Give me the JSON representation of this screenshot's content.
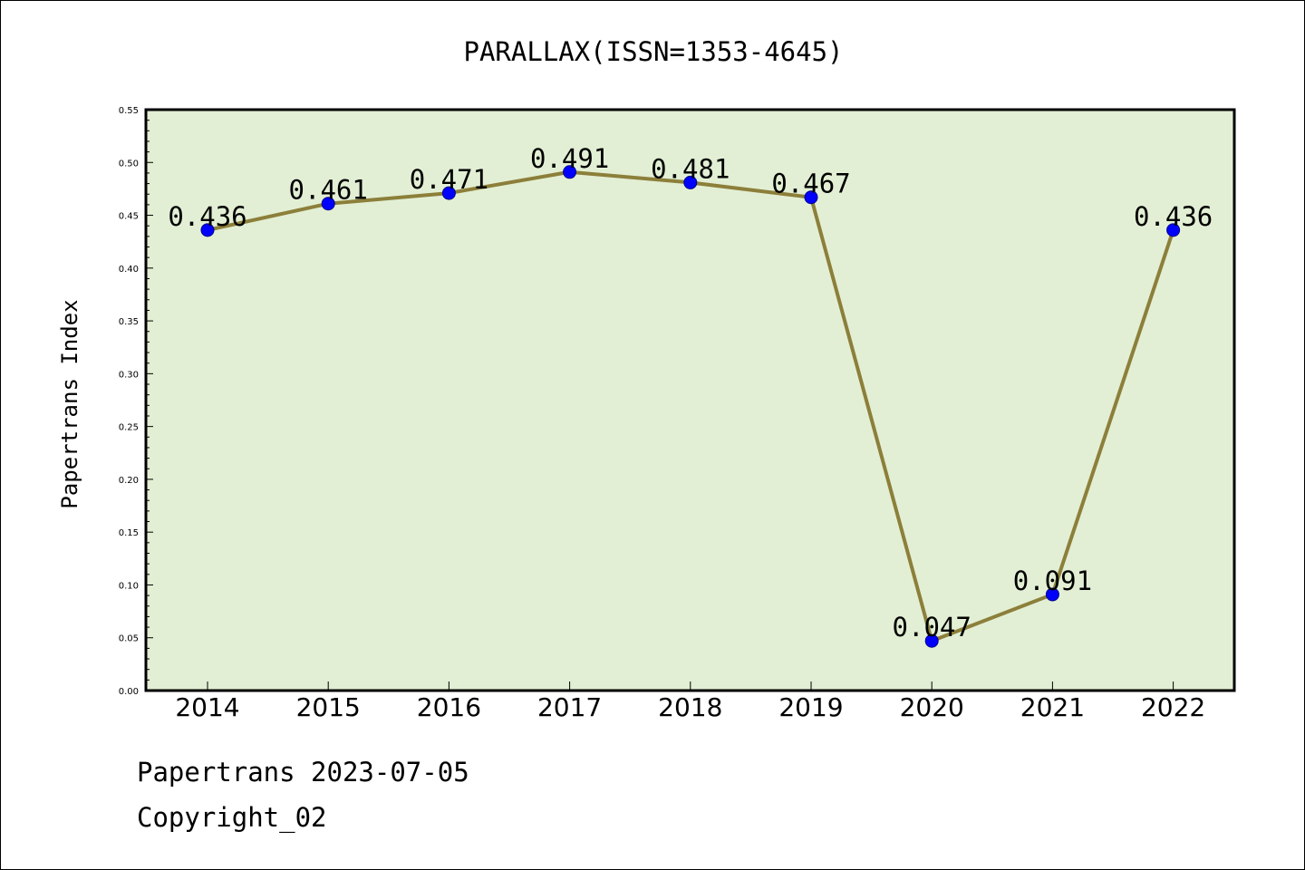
{
  "chart_data": {
    "type": "line",
    "title": "PARALLAX(ISSN=1353-4645)",
    "xlabel": "",
    "ylabel": "Papertrans Index",
    "categories": [
      "2014",
      "2015",
      "2016",
      "2017",
      "2018",
      "2019",
      "2020",
      "2021",
      "2022"
    ],
    "series": [
      {
        "values": [
          0.436,
          0.461,
          0.471,
          0.491,
          0.481,
          0.467,
          0.047,
          0.091,
          0.436
        ],
        "data_labels": [
          "0.436",
          "0.461",
          "0.471",
          "0.491",
          "0.481",
          "0.467",
          "0.047",
          "0.091",
          "0.436"
        ]
      }
    ],
    "ylim": [
      0,
      0.55
    ],
    "yticks": [
      "0.00",
      "0.05",
      "0.10",
      "0.15",
      "0.20",
      "0.25",
      "0.30",
      "0.35",
      "0.40",
      "0.45",
      "0.50",
      "0.55"
    ],
    "grid": false,
    "colors": {
      "line": "#8c7f3a",
      "marker": "#0000ff",
      "plot_background": "#e2efd4"
    }
  },
  "footer": {
    "line1": "Papertrans 2023-07-05",
    "line2": "Copyright_02"
  }
}
